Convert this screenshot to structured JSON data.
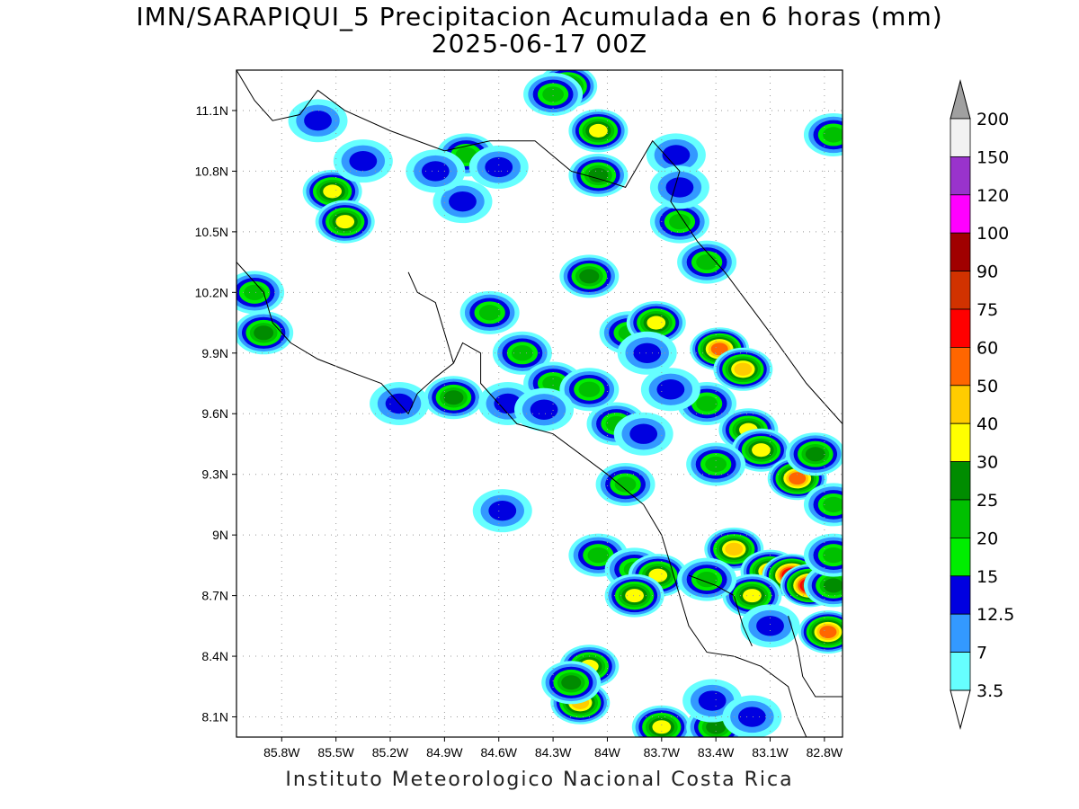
{
  "header": {
    "title": "IMN/SARAPIQUI_5 Precipitacion Acumulada en 6 horas (mm)",
    "subtitle": "2025-06-17 00Z"
  },
  "footer": {
    "credit": "Instituto Meteorologico Nacional Costa Rica"
  },
  "map": {
    "lon_range": [
      -86.05,
      -82.7
    ],
    "lat_range": [
      8.0,
      11.3
    ],
    "lat_ticks": [
      "11.1N",
      "10.8N",
      "10.5N",
      "10.2N",
      "9.9N",
      "9.6N",
      "9.3N",
      "9N",
      "8.7N",
      "8.4N",
      "8.1N"
    ],
    "lat_values": [
      11.1,
      10.8,
      10.5,
      10.2,
      9.9,
      9.6,
      9.3,
      9.0,
      8.7,
      8.4,
      8.1
    ],
    "lon_ticks": [
      "85.8W",
      "85.5W",
      "85.2W",
      "84.9W",
      "84.6W",
      "84.3W",
      "84W",
      "83.7W",
      "83.4W",
      "83.1W",
      "82.8W"
    ],
    "lon_values": [
      -85.8,
      -85.5,
      -85.2,
      -84.9,
      -84.6,
      -84.3,
      -84.0,
      -83.7,
      -83.4,
      -83.1,
      -82.8
    ],
    "grid": true
  },
  "colorbar": {
    "labels": [
      "3.5",
      "7",
      "12.5",
      "15",
      "20",
      "25",
      "30",
      "40",
      "50",
      "60",
      "75",
      "90",
      "100",
      "120",
      "150",
      "200"
    ],
    "colors": [
      "#ffffff",
      "#66ffff",
      "#3399ff",
      "#0000e0",
      "#00ee00",
      "#00c000",
      "#008c00",
      "#ffff00",
      "#ffcc00",
      "#ff6600",
      "#ff0000",
      "#d13200",
      "#a00000",
      "#ff00ff",
      "#9933cc",
      "#f2f2f2",
      "#a0a0a0"
    ]
  },
  "precip_cells": [
    {
      "lon": -85.52,
      "lat": 10.7,
      "v": 30
    },
    {
      "lon": -85.45,
      "lat": 10.55,
      "v": 30
    },
    {
      "lon": -85.35,
      "lat": 10.85,
      "v": 12.5
    },
    {
      "lon": -85.9,
      "lat": 10.0,
      "v": 25
    },
    {
      "lon": -85.95,
      "lat": 10.2,
      "v": 20
    },
    {
      "lon": -85.6,
      "lat": 11.05,
      "v": 12.5
    },
    {
      "lon": -84.78,
      "lat": 10.88,
      "v": 20
    },
    {
      "lon": -84.6,
      "lat": 10.82,
      "v": 12.5
    },
    {
      "lon": -84.8,
      "lat": 10.65,
      "v": 12.5
    },
    {
      "lon": -84.95,
      "lat": 10.8,
      "v": 12.5
    },
    {
      "lon": -84.65,
      "lat": 10.1,
      "v": 20
    },
    {
      "lon": -84.85,
      "lat": 9.68,
      "v": 25
    },
    {
      "lon": -85.15,
      "lat": 9.65,
      "v": 12.5
    },
    {
      "lon": -84.22,
      "lat": 11.22,
      "v": 30
    },
    {
      "lon": -84.05,
      "lat": 11.0,
      "v": 30
    },
    {
      "lon": -84.05,
      "lat": 10.78,
      "v": 25
    },
    {
      "lon": -84.3,
      "lat": 11.18,
      "v": 20
    },
    {
      "lon": -83.62,
      "lat": 10.88,
      "v": 12.5
    },
    {
      "lon": -83.6,
      "lat": 10.55,
      "v": 20
    },
    {
      "lon": -83.45,
      "lat": 10.35,
      "v": 20
    },
    {
      "lon": -82.75,
      "lat": 10.98,
      "v": 20
    },
    {
      "lon": -83.88,
      "lat": 10.0,
      "v": 20
    },
    {
      "lon": -83.73,
      "lat": 10.05,
      "v": 30
    },
    {
      "lon": -84.1,
      "lat": 10.28,
      "v": 25
    },
    {
      "lon": -83.38,
      "lat": 9.92,
      "v": 50
    },
    {
      "lon": -83.25,
      "lat": 9.82,
      "v": 40
    },
    {
      "lon": -83.45,
      "lat": 9.65,
      "v": 20
    },
    {
      "lon": -83.22,
      "lat": 9.52,
      "v": 30
    },
    {
      "lon": -83.15,
      "lat": 9.42,
      "v": 30
    },
    {
      "lon": -82.95,
      "lat": 9.28,
      "v": 50
    },
    {
      "lon": -82.85,
      "lat": 9.4,
      "v": 25
    },
    {
      "lon": -83.4,
      "lat": 9.35,
      "v": 20
    },
    {
      "lon": -83.9,
      "lat": 9.25,
      "v": 20
    },
    {
      "lon": -84.58,
      "lat": 9.12,
      "v": 12.5
    },
    {
      "lon": -84.05,
      "lat": 8.9,
      "v": 20
    },
    {
      "lon": -83.85,
      "lat": 8.83,
      "v": 20
    },
    {
      "lon": -83.72,
      "lat": 8.8,
      "v": 30
    },
    {
      "lon": -83.85,
      "lat": 8.7,
      "v": 30
    },
    {
      "lon": -83.3,
      "lat": 8.93,
      "v": 40
    },
    {
      "lon": -83.1,
      "lat": 8.82,
      "v": 40
    },
    {
      "lon": -82.98,
      "lat": 8.8,
      "v": 75
    },
    {
      "lon": -82.88,
      "lat": 8.75,
      "v": 75
    },
    {
      "lon": -83.2,
      "lat": 8.7,
      "v": 30
    },
    {
      "lon": -82.75,
      "lat": 8.75,
      "v": 25
    },
    {
      "lon": -82.78,
      "lat": 8.52,
      "v": 50
    },
    {
      "lon": -84.1,
      "lat": 8.35,
      "v": 30
    },
    {
      "lon": -84.15,
      "lat": 8.17,
      "v": 40
    },
    {
      "lon": -84.2,
      "lat": 8.27,
      "v": 25
    },
    {
      "lon": -83.7,
      "lat": 8.05,
      "v": 30
    },
    {
      "lon": -83.4,
      "lat": 8.05,
      "v": 25
    },
    {
      "lon": -83.45,
      "lat": 8.78,
      "v": 20
    },
    {
      "lon": -84.47,
      "lat": 9.9,
      "v": 20
    },
    {
      "lon": -84.3,
      "lat": 9.75,
      "v": 20
    },
    {
      "lon": -84.55,
      "lat": 9.65,
      "v": 12.5
    },
    {
      "lon": -83.95,
      "lat": 9.55,
      "v": 20
    },
    {
      "lon": -83.8,
      "lat": 9.5,
      "v": 12.5
    },
    {
      "lon": -84.1,
      "lat": 9.72,
      "v": 20
    },
    {
      "lon": -83.65,
      "lat": 9.72,
      "v": 12.5
    },
    {
      "lon": -83.78,
      "lat": 9.9,
      "v": 12.5
    },
    {
      "lon": -83.6,
      "lat": 10.72,
      "v": 12.5
    },
    {
      "lon": -84.35,
      "lat": 9.62,
      "v": 12.5
    },
    {
      "lon": -82.75,
      "lat": 8.9,
      "v": 20
    },
    {
      "lon": -82.75,
      "lat": 9.15,
      "v": 20
    },
    {
      "lon": -83.1,
      "lat": 8.55,
      "v": 12.5
    },
    {
      "lon": -83.42,
      "lat": 8.18,
      "v": 12.5
    },
    {
      "lon": -83.2,
      "lat": 8.1,
      "v": 12.5
    }
  ],
  "coastlines": [
    [
      [
        -86.05,
        11.3
      ],
      [
        -85.95,
        11.15
      ],
      [
        -85.85,
        11.05
      ],
      [
        -85.7,
        11.08
      ],
      [
        -85.6,
        11.2
      ],
      [
        -85.45,
        11.1
      ],
      [
        -85.2,
        11.0
      ],
      [
        -84.9,
        10.9
      ],
      [
        -84.65,
        10.95
      ],
      [
        -84.4,
        10.95
      ],
      [
        -84.2,
        10.8
      ],
      [
        -84.0,
        10.75
      ],
      [
        -83.9,
        10.72
      ],
      [
        -83.75,
        10.95
      ],
      [
        -83.6,
        10.8
      ],
      [
        -83.65,
        10.65
      ],
      [
        -83.5,
        10.45
      ],
      [
        -83.35,
        10.3
      ],
      [
        -83.1,
        10.0
      ],
      [
        -82.9,
        9.75
      ],
      [
        -82.8,
        9.65
      ],
      [
        -82.7,
        9.55
      ]
    ],
    [
      [
        -86.05,
        10.35
      ],
      [
        -85.9,
        10.2
      ],
      [
        -85.85,
        10.05
      ],
      [
        -85.75,
        9.95
      ],
      [
        -85.6,
        9.87
      ],
      [
        -85.4,
        9.8
      ],
      [
        -85.25,
        9.75
      ],
      [
        -85.1,
        9.6
      ],
      [
        -85.05,
        9.7
      ],
      [
        -84.95,
        9.78
      ],
      [
        -84.85,
        9.85
      ],
      [
        -84.8,
        9.95
      ],
      [
        -84.7,
        9.9
      ],
      [
        -84.7,
        9.75
      ],
      [
        -84.6,
        9.65
      ],
      [
        -84.5,
        9.55
      ],
      [
        -84.3,
        9.5
      ],
      [
        -84.15,
        9.4
      ],
      [
        -84.0,
        9.3
      ],
      [
        -83.8,
        9.15
      ],
      [
        -83.7,
        9.0
      ],
      [
        -83.65,
        8.85
      ],
      [
        -83.6,
        8.7
      ],
      [
        -83.55,
        8.55
      ],
      [
        -83.45,
        8.42
      ],
      [
        -83.3,
        8.4
      ],
      [
        -83.15,
        8.35
      ],
      [
        -83.0,
        8.25
      ],
      [
        -82.95,
        8.1
      ],
      [
        -82.9,
        8.0
      ]
    ],
    [
      [
        -85.1,
        10.3
      ],
      [
        -85.05,
        10.2
      ],
      [
        -84.95,
        10.15
      ],
      [
        -84.9,
        10.0
      ],
      [
        -84.85,
        9.85
      ]
    ],
    [
      [
        -83.55,
        8.8
      ],
      [
        -83.4,
        8.75
      ],
      [
        -83.3,
        8.7
      ],
      [
        -83.25,
        8.55
      ],
      [
        -83.2,
        8.45
      ]
    ],
    [
      [
        -83.0,
        8.6
      ],
      [
        -82.95,
        8.45
      ],
      [
        -82.92,
        8.3
      ],
      [
        -82.85,
        8.2
      ],
      [
        -82.7,
        8.2
      ]
    ]
  ]
}
